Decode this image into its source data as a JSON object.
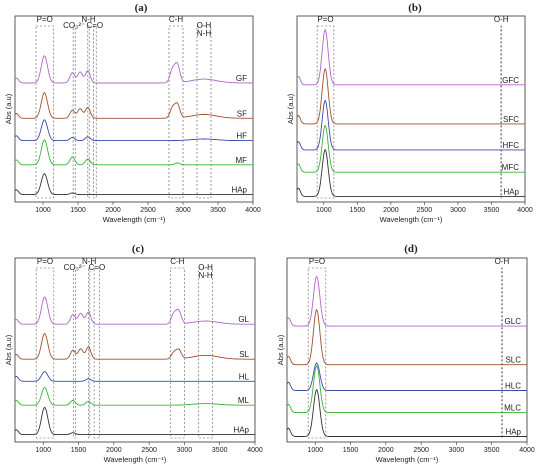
{
  "chart_data": [
    {
      "panel": "(a)",
      "type": "line",
      "xlabel": "Wavelength (cm⁻¹)",
      "ylabel": "Abs (a.u)",
      "xlim": [
        600,
        4000
      ],
      "x_ticks": [
        1000,
        1500,
        2000,
        2500,
        3000,
        3500,
        4000
      ],
      "tick_labels": [
        "1000",
        "1500",
        "2000",
        "2500",
        "3000",
        "3500",
        "4000"
      ],
      "series": [
        {
          "name": "GF",
          "color": "#b266c9",
          "peaks": [
            [
              1020,
              0.85
            ],
            [
              1420,
              0.32
            ],
            [
              1530,
              0.34
            ],
            [
              1640,
              0.38
            ],
            [
              2850,
              0.42
            ],
            [
              2920,
              0.55
            ],
            [
              3300,
              0.12
            ]
          ]
        },
        {
          "name": "SF",
          "color": "#a0502e",
          "peaks": [
            [
              1020,
              0.8
            ],
            [
              1420,
              0.25
            ],
            [
              1530,
              0.3
            ],
            [
              1640,
              0.34
            ],
            [
              2850,
              0.32
            ],
            [
              2920,
              0.42
            ],
            [
              3300,
              0.12
            ]
          ]
        },
        {
          "name": "HF",
          "color": "#3c4aa8",
          "peaks": [
            [
              1020,
              0.65
            ],
            [
              1420,
              0.1
            ],
            [
              1640,
              0.12
            ],
            [
              3300,
              0.05
            ]
          ]
        },
        {
          "name": "MF",
          "color": "#39b33a",
          "peaks": [
            [
              1020,
              0.78
            ],
            [
              1420,
              0.25
            ],
            [
              1640,
              0.18
            ],
            [
              2920,
              0.06
            ]
          ]
        },
        {
          "name": "HAp",
          "color": "#333333",
          "peaks": [
            [
              1020,
              0.65
            ],
            [
              1420,
              0.05
            ]
          ]
        }
      ],
      "annotations": [
        "P=O",
        "CO₃²⁻",
        "N-H",
        "C=O",
        "C-H",
        "O-H\nN-H"
      ],
      "highlight_bands": [
        [
          900,
          1150
        ],
        [
          1430,
          1460
        ],
        [
          1640,
          1660
        ],
        [
          1720,
          1760
        ],
        [
          2800,
          3000
        ],
        [
          3200,
          3400
        ]
      ],
      "grid": false
    },
    {
      "panel": "(b)",
      "type": "line",
      "xlabel": "Wavelength (cm⁻¹)",
      "ylabel": "Abs (a.u)",
      "xlim": [
        600,
        4000
      ],
      "x_ticks": [
        1000,
        1500,
        2000,
        2500,
        3000,
        3500,
        4000
      ],
      "tick_labels": [
        "1000",
        "1500",
        "2000",
        "2500",
        "3000",
        "3500",
        "4000"
      ],
      "series": [
        {
          "name": "GFC",
          "color": "#b266c9",
          "peaks": [
            [
              1020,
              1.0
            ]
          ]
        },
        {
          "name": "SFC",
          "color": "#a0502e",
          "peaks": [
            [
              1020,
              1.0
            ]
          ]
        },
        {
          "name": "HFC",
          "color": "#3c4aa8",
          "peaks": [
            [
              1020,
              0.9
            ]
          ]
        },
        {
          "name": "MFC",
          "color": "#39b33a",
          "peaks": [
            [
              1020,
              0.85
            ]
          ]
        },
        {
          "name": "HAp",
          "color": "#333333",
          "peaks": [
            [
              1020,
              0.85
            ]
          ]
        }
      ],
      "annotations": [
        "P=O",
        "O-H"
      ],
      "highlight_bands": [
        [
          900,
          1150
        ],
        [
          3640,
          3650
        ]
      ],
      "grid": false
    },
    {
      "panel": "(c)",
      "type": "line",
      "xlabel": "Wavelength (cm⁻¹)",
      "ylabel": "Abs (a.u)",
      "xlim": [
        600,
        4000
      ],
      "x_ticks": [
        1000,
        1500,
        2000,
        2500,
        3000,
        3500,
        4000
      ],
      "tick_labels": [
        "1000",
        "1500",
        "2000",
        "2500",
        "3000",
        "3500",
        "4000"
      ],
      "series": [
        {
          "name": "GL",
          "color": "#b266c9",
          "peaks": [
            [
              1020,
              0.85
            ],
            [
              1420,
              0.3
            ],
            [
              1530,
              0.34
            ],
            [
              1640,
              0.38
            ],
            [
              2850,
              0.32
            ],
            [
              2920,
              0.4
            ],
            [
              3300,
              0.1
            ]
          ]
        },
        {
          "name": "SL",
          "color": "#a0502e",
          "peaks": [
            [
              1020,
              0.8
            ],
            [
              1420,
              0.28
            ],
            [
              1530,
              0.32
            ],
            [
              1640,
              0.38
            ],
            [
              2850,
              0.2
            ],
            [
              2920,
              0.28
            ],
            [
              3300,
              0.12
            ]
          ]
        },
        {
          "name": "HL",
          "color": "#3c4aa8",
          "peaks": [
            [
              1020,
              0.3
            ],
            [
              1640,
              0.08
            ]
          ]
        },
        {
          "name": "ML",
          "color": "#39b33a",
          "peaks": [
            [
              1020,
              0.55
            ],
            [
              1420,
              0.15
            ],
            [
              1640,
              0.12
            ],
            [
              3300,
              0.05
            ]
          ]
        },
        {
          "name": "HAp",
          "color": "#333333",
          "peaks": [
            [
              1020,
              0.85
            ],
            [
              1420,
              0.06
            ]
          ]
        }
      ],
      "annotations": [
        "P=O",
        "CO₃²⁻",
        "N-H",
        "C=O",
        "C-H",
        "O-H\nN-H"
      ],
      "highlight_bands": [
        [
          900,
          1150
        ],
        [
          1430,
          1460
        ],
        [
          1640,
          1660
        ],
        [
          1720,
          1800
        ],
        [
          2800,
          3000
        ],
        [
          3200,
          3400
        ]
      ],
      "grid": false
    },
    {
      "panel": "(d)",
      "type": "line",
      "xlabel": "Wavelength (cm⁻¹)",
      "ylabel": "Abs (a.u)",
      "xlim": [
        600,
        4000
      ],
      "x_ticks": [
        1000,
        1500,
        2000,
        2500,
        3000,
        3500,
        4000
      ],
      "tick_labels": [
        "1000",
        "1500",
        "2000",
        "2500",
        "3000",
        "3500",
        "4000"
      ],
      "series": [
        {
          "name": "GLC",
          "color": "#b266c9",
          "peaks": [
            [
              1020,
              0.9
            ]
          ]
        },
        {
          "name": "SLC",
          "color": "#a0502e",
          "peaks": [
            [
              1020,
              1.0
            ]
          ]
        },
        {
          "name": "HLC",
          "color": "#3c4aa8",
          "peaks": [
            [
              1020,
              0.5
            ]
          ]
        },
        {
          "name": "MLC",
          "color": "#39b33a",
          "peaks": [
            [
              1020,
              0.85
            ]
          ]
        },
        {
          "name": "HAp",
          "color": "#333333",
          "peaks": [
            [
              1020,
              0.85
            ]
          ]
        }
      ],
      "annotations": [
        "P=O",
        "O-H"
      ],
      "highlight_bands": [
        [
          900,
          1150
        ],
        [
          3640,
          3650
        ]
      ],
      "grid": false
    }
  ]
}
